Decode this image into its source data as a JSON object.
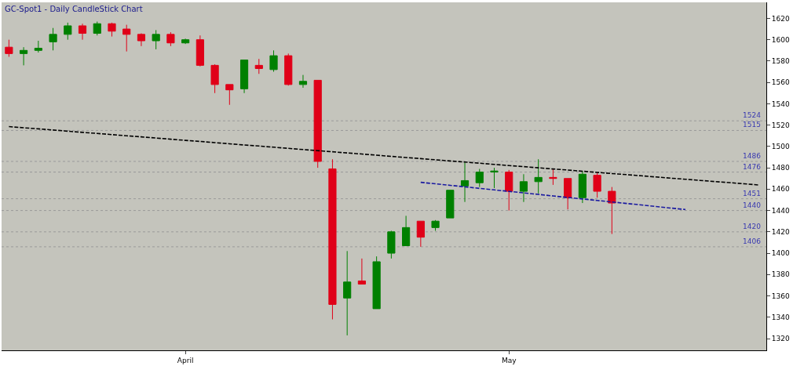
{
  "chart_data": {
    "type": "candlestick",
    "title": "GC-Spot1 - Daily CandleStick Chart",
    "categories": [
      null,
      null,
      null,
      null,
      null,
      null,
      null,
      null,
      null,
      null,
      null,
      null,
      "April",
      null,
      null,
      null,
      null,
      null,
      null,
      null,
      null,
      null,
      null,
      null,
      null,
      null,
      null,
      null,
      null,
      null,
      null,
      null,
      null,
      null,
      "May",
      null,
      null,
      null,
      null,
      null,
      null,
      null,
      null,
      null,
      null,
      null,
      null,
      null,
      null,
      null,
      null,
      null
    ],
    "ylim": [
      1309,
      1635
    ],
    "yticks": [
      1320,
      1340,
      1360,
      1380,
      1400,
      1420,
      1440,
      1460,
      1480,
      1500,
      1520,
      1540,
      1560,
      1580,
      1600,
      1620
    ],
    "grid": false,
    "series": [
      {
        "ohlc": [
          [
            1593,
            1600,
            1584,
            1587
          ],
          [
            1587,
            1593,
            1576,
            1590
          ],
          [
            1590,
            1599,
            1588,
            1592
          ],
          [
            1598,
            1611,
            1590,
            1605
          ],
          [
            1605,
            1616,
            1600,
            1613
          ],
          [
            1613,
            1615,
            1600,
            1606
          ],
          [
            1606,
            1617,
            1604,
            1615
          ],
          [
            1615,
            1616,
            1603,
            1608
          ],
          [
            1610,
            1614,
            1589,
            1605
          ],
          [
            1605,
            1606,
            1594,
            1599
          ],
          [
            1599,
            1609,
            1591,
            1605
          ],
          [
            1605,
            1607,
            1594,
            1597
          ],
          [
            1597,
            1601,
            1596,
            1600
          ],
          [
            1600,
            1604,
            1575,
            1576
          ],
          [
            1576,
            1577,
            1550,
            1558
          ],
          [
            1558,
            1558,
            1539,
            1553
          ],
          [
            1554,
            1581,
            1550,
            1581
          ],
          [
            1576,
            1582,
            1568,
            1573
          ],
          [
            1572,
            1590,
            1570,
            1585
          ],
          [
            1585,
            1587,
            1557,
            1558
          ],
          [
            1558,
            1567,
            1555,
            1561
          ],
          [
            1562,
            1562,
            1480,
            1486
          ],
          [
            1479,
            1488,
            1338,
            1352
          ],
          [
            1358,
            1402,
            1323,
            1373
          ],
          [
            1374,
            1395,
            1371,
            1371
          ],
          [
            1348,
            1397,
            1348,
            1392
          ],
          [
            1400,
            1421,
            1395,
            1420
          ],
          [
            1407,
            1435,
            1407,
            1424
          ],
          [
            1430,
            1430,
            1406,
            1415
          ],
          [
            1424,
            1431,
            1421,
            1430
          ],
          [
            1433,
            1459,
            1433,
            1459
          ],
          [
            1463,
            1485,
            1448,
            1468
          ],
          [
            1466,
            1479,
            1462,
            1476
          ],
          [
            1476,
            1480,
            1461,
            1477
          ],
          [
            1476,
            1478,
            1440,
            1458
          ],
          [
            1458,
            1474,
            1448,
            1467
          ],
          [
            1467,
            1488,
            1456,
            1471
          ],
          [
            1471,
            1479,
            1464,
            1470
          ],
          [
            1470,
            1470,
            1441,
            1452
          ],
          [
            1452,
            1477,
            1447,
            1474
          ],
          [
            1473,
            1476,
            1452,
            1458
          ],
          [
            1458,
            1462,
            1418,
            1447
          ],
          null,
          null,
          null,
          null,
          null,
          null,
          null,
          null,
          null,
          null
        ],
        "colors": [
          "#e00018",
          "#008000",
          "#008000",
          "#008000",
          "#008000",
          "#e00018",
          "#008000",
          "#e00018",
          "#e00018",
          "#e00018",
          "#008000",
          "#e00018",
          "#008000",
          "#e00018",
          "#e00018",
          "#e00018",
          "#008000",
          "#e00018",
          "#008000",
          "#e00018",
          "#008000",
          "#e00018",
          "#e00018",
          "#008000",
          "#e00018",
          "#008000",
          "#008000",
          "#008000",
          "#e00018",
          "#008000",
          "#008000",
          "#008000",
          "#008000",
          "#008000",
          "#e00018",
          "#008000",
          "#008000",
          "#e00018",
          "#e00018",
          "#008000",
          "#e00018",
          "#e00018",
          null,
          null,
          null,
          null,
          null,
          null,
          null,
          null,
          null,
          null
        ]
      },
      {
        "type": "line",
        "color": "#000000",
        "line_style": "dashed",
        "values": [
          1518.6,
          1517.5,
          1516.5,
          1515.4,
          1514.3,
          1513.2,
          1512.2,
          1511.1,
          1510.0,
          1509.0,
          1507.9,
          1506.8,
          1505.7,
          1504.7,
          1503.6,
          1502.5,
          1501.4,
          1500.4,
          1499.3,
          1498.2,
          1497.1,
          1496.1,
          1495.0,
          1493.9,
          1492.9,
          1491.8,
          1490.7,
          1489.6,
          1488.6,
          1487.5,
          1486.4,
          1485.4,
          1484.3,
          1483.2,
          1482.1,
          1481.1,
          1480.0,
          1478.9,
          1477.9,
          1476.8,
          1475.7,
          1474.6,
          1473.6,
          1472.5,
          1471.4,
          1470.3,
          1469.3,
          1468.2,
          1467.1,
          1466.1,
          1465.0,
          1463.9
        ]
      },
      {
        "type": "line",
        "color": "#1a1aa0",
        "line_style": "dashed",
        "values": [
          null,
          null,
          null,
          null,
          null,
          null,
          null,
          null,
          null,
          null,
          null,
          null,
          null,
          null,
          null,
          null,
          null,
          null,
          null,
          null,
          null,
          null,
          null,
          null,
          null,
          null,
          null,
          null,
          1466.4,
          1465.0,
          1463.6,
          1462.2,
          1460.7,
          1459.3,
          1457.9,
          1456.5,
          1455.1,
          1453.6,
          1452.2,
          1450.8,
          1449.4,
          1448.0,
          1446.6,
          1445.2,
          1443.7,
          1442.3,
          1440.9,
          null,
          null,
          null,
          null,
          null
        ]
      }
    ],
    "ref_lines": [
      {
        "axis": "y",
        "value": 1524,
        "label": "1524",
        "color": "#9a9a9a",
        "line_style": "dotted"
      },
      {
        "axis": "y",
        "value": 1515,
        "label": "1515",
        "color": "#9a9a9a",
        "line_style": "dotted"
      },
      {
        "axis": "y",
        "value": 1486,
        "label": "1486",
        "color": "#9a9a9a",
        "line_style": "dotted"
      },
      {
        "axis": "y",
        "value": 1476,
        "label": "1476",
        "color": "#9a9a9a",
        "line_style": "dotted"
      },
      {
        "axis": "y",
        "value": 1451,
        "label": "1451",
        "color": "#9a9a9a",
        "line_style": "dotted"
      },
      {
        "axis": "y",
        "value": 1440,
        "label": "1440",
        "color": "#9a9a9a",
        "line_style": "dotted"
      },
      {
        "axis": "y",
        "value": 1420,
        "label": "1420",
        "color": "#9a9a9a",
        "line_style": "dotted"
      },
      {
        "axis": "y",
        "value": 1406,
        "label": "1406",
        "color": "#9a9a9a",
        "line_style": "dotted"
      }
    ]
  }
}
